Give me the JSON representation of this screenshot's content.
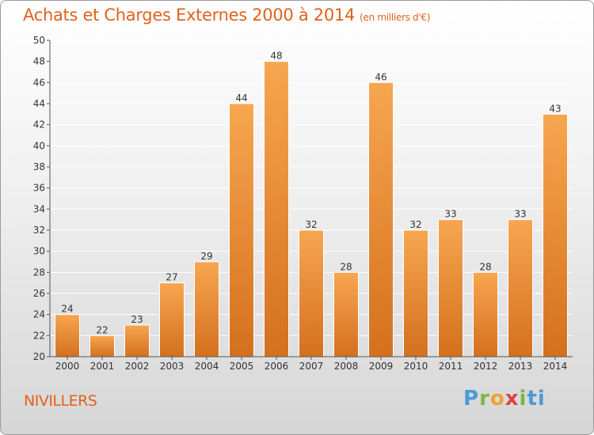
{
  "header": {
    "title": "Achats et Charges Externes 2000 à 2014",
    "subtitle": "(en milliers d'€)"
  },
  "footer": {
    "place": "NIVILLERS",
    "logo_letters": [
      "P",
      "r",
      "o",
      "x",
      "i",
      "ti"
    ]
  },
  "colors": {
    "title": "#e0621c",
    "bar_top": "#f7a650",
    "bar_bottom": "#d4701e",
    "axis": "#555555",
    "grid": "#ffffff"
  },
  "chart_data": {
    "type": "bar",
    "categories": [
      "2000",
      "2001",
      "2002",
      "2003",
      "2004",
      "2005",
      "2006",
      "2007",
      "2008",
      "2009",
      "2010",
      "2011",
      "2012",
      "2013",
      "2014"
    ],
    "values": [
      24,
      22,
      23,
      27,
      29,
      44,
      48,
      32,
      28,
      46,
      32,
      33,
      28,
      33,
      43
    ],
    "ylim": [
      20,
      50
    ],
    "yticks": [
      20,
      22,
      24,
      26,
      28,
      30,
      32,
      34,
      36,
      38,
      40,
      42,
      44,
      46,
      48,
      50
    ],
    "grid": true,
    "data_labels": true
  }
}
